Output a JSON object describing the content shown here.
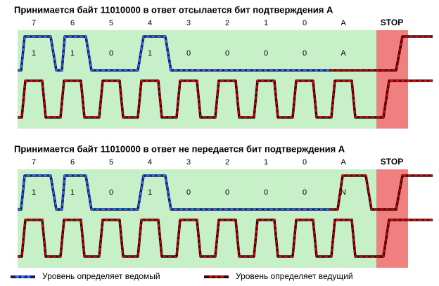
{
  "panels": [
    {
      "title": "Принимается байт 11010000 в ответ отсылается бит подтверждения А",
      "bit_headers": [
        "7",
        "6",
        "5",
        "4",
        "3",
        "2",
        "1",
        "0",
        "A",
        "STOP"
      ],
      "bit_values": [
        "1",
        "1",
        "0",
        "1",
        "0",
        "0",
        "0",
        "0",
        "A"
      ]
    },
    {
      "title": "Принимается байт 11010000 в ответ не передается бит подтверждения А",
      "bit_headers": [
        "7",
        "6",
        "5",
        "4",
        "3",
        "2",
        "1",
        "0",
        "A",
        "STOP"
      ],
      "bit_values": [
        "1",
        "1",
        "0",
        "1",
        "0",
        "0",
        "0",
        "0",
        "N"
      ]
    }
  ],
  "legend": [
    {
      "label": "Уровень определяет ведомый"
    },
    {
      "label": "Уровень определяет ведущий"
    }
  ]
}
